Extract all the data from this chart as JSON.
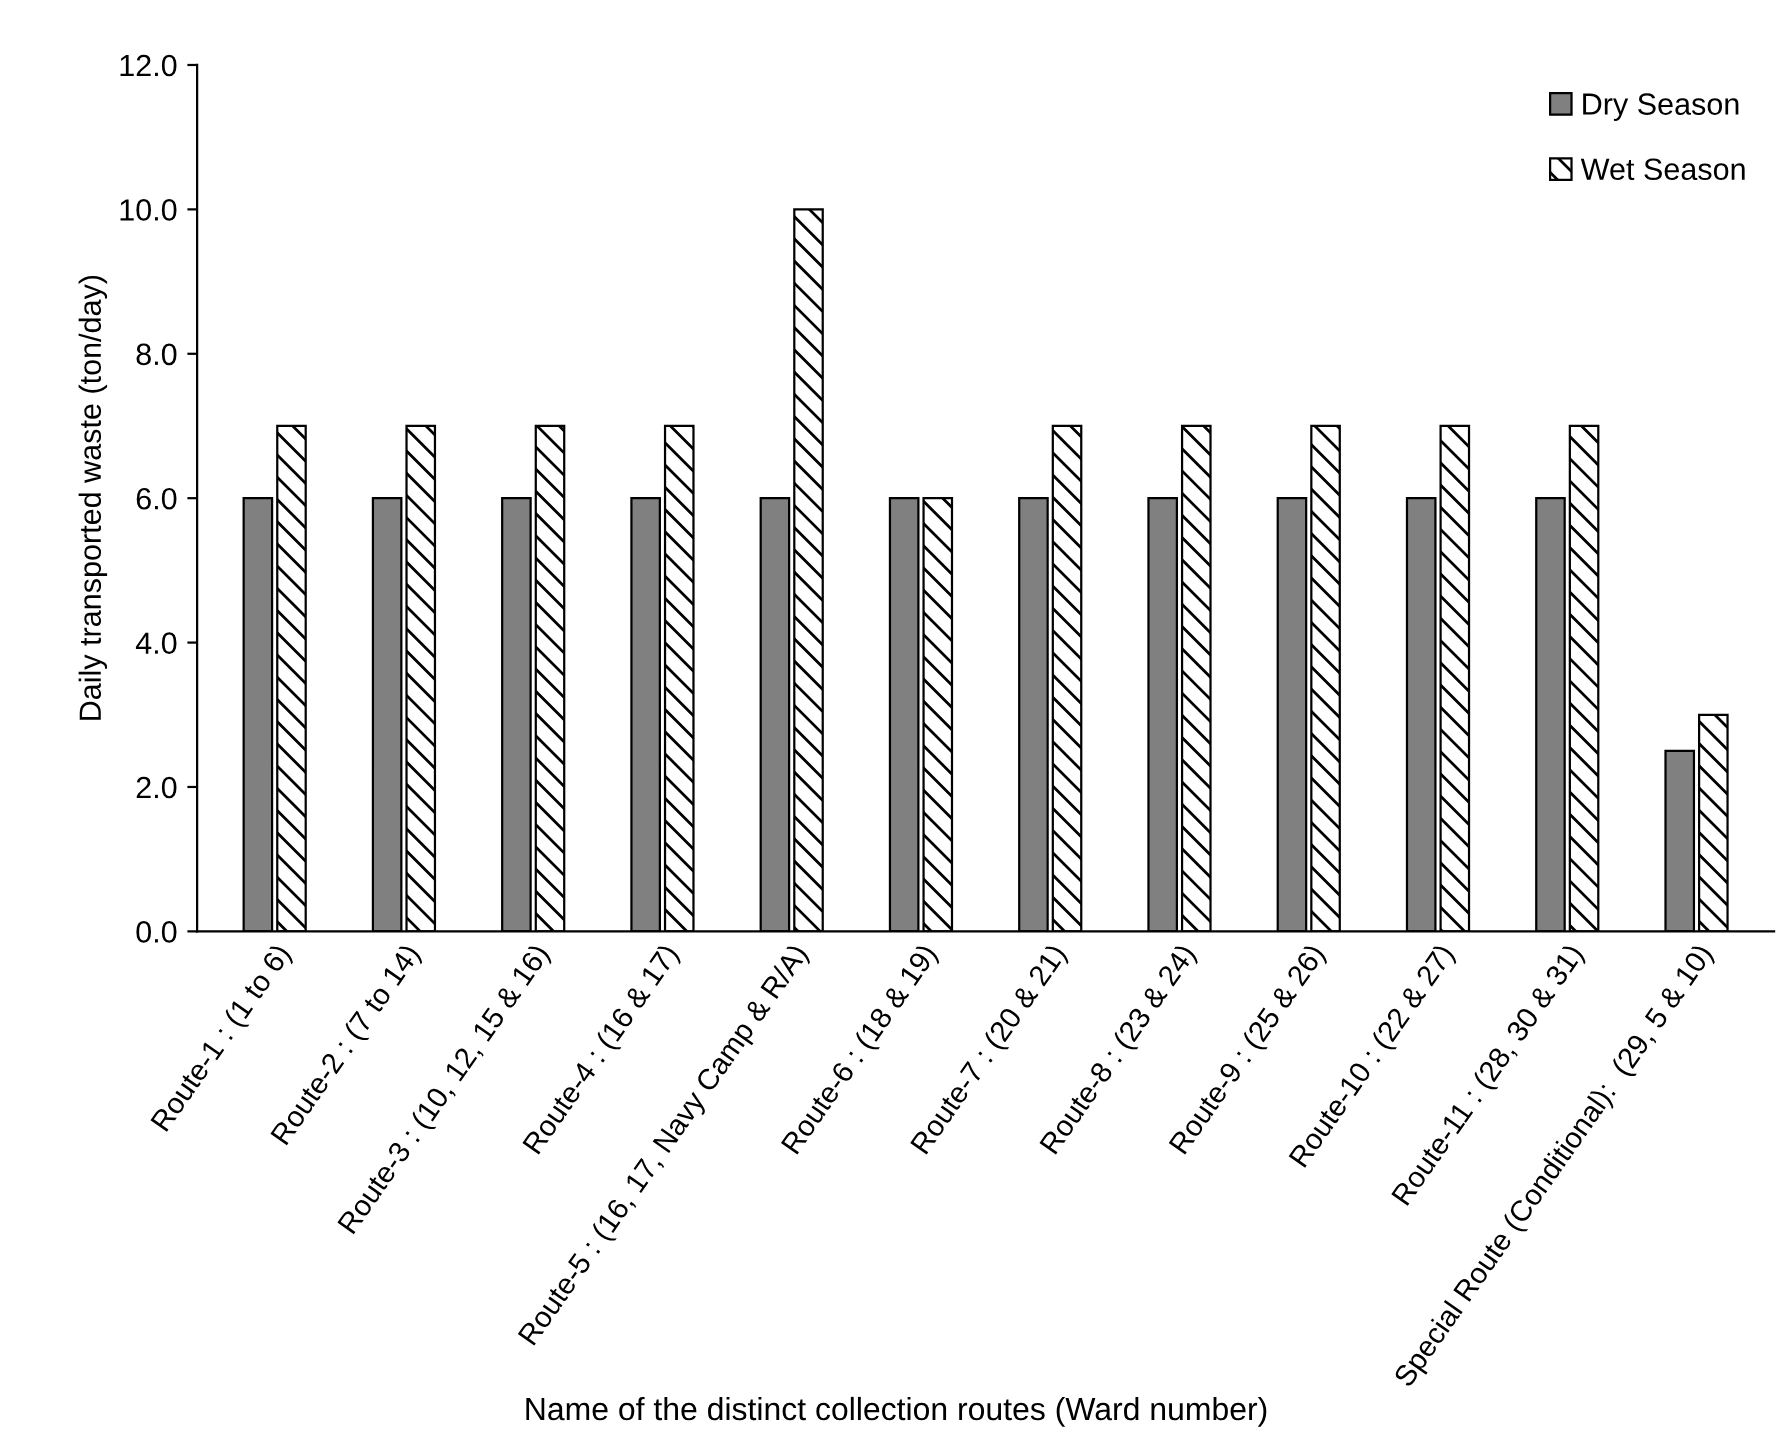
{
  "chart_data": {
    "type": "bar",
    "xlabel": "Name of the distinct collection routes (Ward number)",
    "ylabel": "Daily transported waste (ton/day)",
    "categories": [
      "Route-1 : (1 to 6)",
      "Route-2 : (7 to 14)",
      "Route-3 : (10, 12, 15 & 16)",
      "Route-4 : (16 & 17)",
      "Route-5 : (16, 17, Navy Camp & R/A)",
      "Route-6 : (18 & 19)",
      "Route-7 : (20 & 21)",
      "Route-8 : (23 & 24)",
      "Route-9 : (25 & 26)",
      "Route-10 : (22 & 27)",
      "Route-11 : (28, 30 & 31)",
      "Special Route (Conditional):  (29, 5 & 10)"
    ],
    "series": [
      {
        "name": "Dry Season",
        "color": "#808080",
        "values": [
          6,
          6,
          6,
          6,
          6,
          6,
          6,
          6,
          6,
          6,
          6,
          2.5
        ]
      },
      {
        "name": "Wet Season",
        "color": "#000000",
        "values": [
          7,
          7,
          7,
          7,
          10,
          6,
          7,
          7,
          7,
          7,
          7,
          3
        ]
      }
    ],
    "ylim": [
      0,
      12
    ],
    "yticks": [
      {
        "value": 0,
        "label": "0.0"
      },
      {
        "value": 2,
        "label": "2.0"
      },
      {
        "value": 4,
        "label": "4.0"
      },
      {
        "value": 6,
        "label": "6.0"
      },
      {
        "value": 8,
        "label": "8.0"
      },
      {
        "value": 10,
        "label": "10.0"
      },
      {
        "value": 12,
        "label": "12.0"
      }
    ],
    "grid": false,
    "legend": "top right"
  }
}
